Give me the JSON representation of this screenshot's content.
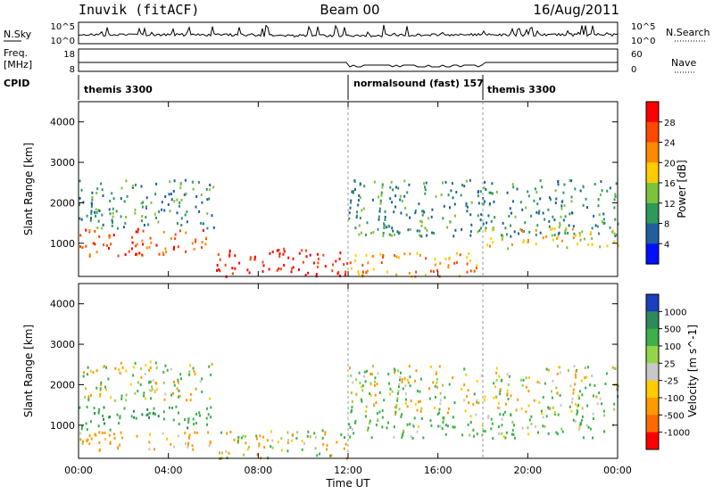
{
  "header": {
    "station": "Inuvik (fitACF)",
    "beam": "Beam 00",
    "date": "16/Aug/2011"
  },
  "params": {
    "nsky_label": "N.Sky",
    "nsky_ticks": [
      "10^5",
      "10^0"
    ],
    "nsearch_label": "N.Search",
    "nsearch_ticks": [
      "10^5",
      "10^0"
    ],
    "freq_label_1": "Freq.",
    "freq_label_2": "[MHz]",
    "freq_ticks": [
      "18",
      "8"
    ],
    "nave_label": "Nave",
    "nave_ticks": [
      "60",
      "0"
    ],
    "cpid_label": "CPID",
    "cpid_segments": [
      {
        "label": "themis 3300",
        "start_hour": 0
      },
      {
        "label": "normalsound (fast) 157",
        "start_hour": 12
      },
      {
        "label": "themis 3300",
        "start_hour": 18
      }
    ]
  },
  "chart_data": [
    {
      "type": "heatmap",
      "name": "power",
      "ylabel": "Slant Range [km]",
      "yticks": [
        "1000",
        "2000",
        "3000",
        "4000"
      ],
      "ylim": [
        180,
        4500
      ],
      "colorbar_label": "Power [dB]",
      "colorbar_ticks": [
        "28",
        "24",
        "20",
        "16",
        "12",
        "8",
        "4"
      ],
      "colorbar_colors": [
        "#ff0000",
        "#ff4800",
        "#ff8a00",
        "#ffcc00",
        "#7ec23c",
        "#2e9a5a",
        "#1f5f9f",
        "#0010ff"
      ],
      "regions": [
        {
          "t0": 0,
          "t1": 5.7,
          "r0": 700,
          "r1": 1400,
          "level": 26
        },
        {
          "t0": 0,
          "t1": 6,
          "r0": 1400,
          "r1": 2600,
          "level": 10
        },
        {
          "t0": 6.1,
          "t1": 12,
          "r0": 200,
          "r1": 900,
          "level": 30
        },
        {
          "t0": 12,
          "t1": 17.8,
          "r0": 200,
          "r1": 800,
          "level": 22
        },
        {
          "t0": 12,
          "t1": 24,
          "r0": 1200,
          "r1": 2600,
          "level": 9
        },
        {
          "t0": 18,
          "t1": 24,
          "r0": 900,
          "r1": 1400,
          "level": 18
        }
      ]
    },
    {
      "type": "heatmap",
      "name": "velocity",
      "ylabel": "Slant Range [km]",
      "yticks": [
        "1000",
        "2000",
        "3000",
        "4000"
      ],
      "ylim": [
        180,
        4500
      ],
      "colorbar_label": "Velocity [m s^-1]",
      "colorbar_ticks": [
        "1000",
        "500",
        "100",
        "25",
        "-25",
        "-100",
        "-500",
        "-1000"
      ],
      "colorbar_colors": [
        "#1a3fbf",
        "#2e8a58",
        "#3cb04a",
        "#94d44a",
        "#c8c8c8",
        "#ffcc00",
        "#ff9a00",
        "#ff6a00",
        "#ff0000"
      ],
      "regions": [
        {
          "t0": 0,
          "t1": 6,
          "r0": 900,
          "r1": 1500,
          "level": 400
        },
        {
          "t0": 0,
          "t1": 6,
          "r0": 400,
          "r1": 900,
          "level": -200
        },
        {
          "t0": 0,
          "t1": 6,
          "r0": 1600,
          "r1": 2600,
          "level": 0
        },
        {
          "t0": 6.1,
          "t1": 12,
          "r0": 200,
          "r1": 900,
          "level": 0
        },
        {
          "t0": 12,
          "t1": 24,
          "r0": 1300,
          "r1": 2500,
          "level": 0
        },
        {
          "t0": 12,
          "t1": 24,
          "r0": 700,
          "r1": 1300,
          "level": 200
        }
      ]
    }
  ],
  "xaxis": {
    "label": "Time UT",
    "ticks": [
      "00:00",
      "04:00",
      "08:00",
      "12:00",
      "16:00",
      "20:00",
      "00:00"
    ],
    "xlim": [
      0,
      24
    ]
  }
}
